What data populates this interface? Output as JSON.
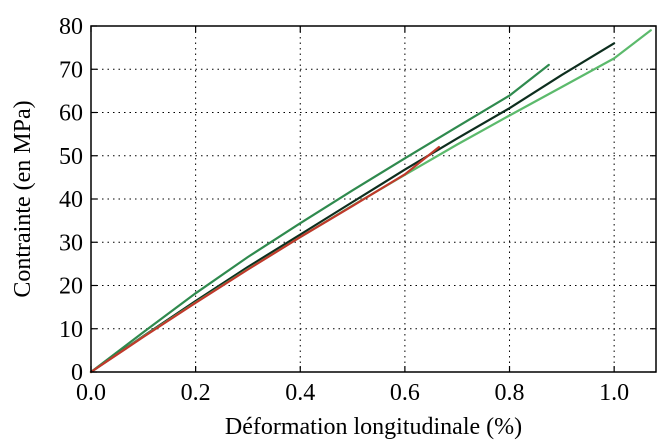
{
  "chart_data": {
    "type": "line",
    "title": "",
    "xlabel": "Déformation longitudinale (%)",
    "ylabel": "Contrainte (en MPa)",
    "xlim": [
      0.0,
      1.08
    ],
    "ylim": [
      0,
      80
    ],
    "x_ticks": [
      0.0,
      0.2,
      0.4,
      0.6,
      0.8,
      1.0
    ],
    "x_tick_labels": [
      "0.0",
      "0.2",
      "0.4",
      "0.6",
      "0.8",
      "1.0"
    ],
    "y_ticks": [
      0,
      10,
      20,
      30,
      40,
      50,
      60,
      70,
      80
    ],
    "y_tick_labels": [
      "0",
      "10",
      "20",
      "30",
      "40",
      "50",
      "60",
      "70",
      "80"
    ],
    "grid": true,
    "legend": false,
    "series": [
      {
        "color": "#2f8a4e",
        "x": [
          0.0,
          0.1,
          0.2,
          0.3,
          0.4,
          0.5,
          0.6,
          0.7,
          0.8,
          0.875
        ],
        "y": [
          0,
          9.2,
          18.2,
          26.6,
          34.4,
          42.0,
          49.4,
          56.7,
          63.9,
          71.0
        ]
      },
      {
        "color": "#0d2e1e",
        "x": [
          0.0,
          0.1,
          0.2,
          0.3,
          0.4,
          0.5,
          0.6,
          0.7,
          0.8,
          0.9,
          1.0
        ],
        "y": [
          0,
          8.3,
          16.4,
          24.3,
          31.8,
          39.3,
          46.8,
          54.0,
          61.0,
          68.7,
          76.0
        ]
      },
      {
        "color": "#5cba6c",
        "x": [
          0.0,
          0.1,
          0.2,
          0.3,
          0.4,
          0.5,
          0.6,
          0.7,
          0.8,
          0.9,
          1.0,
          1.07
        ],
        "y": [
          0,
          8.2,
          16.1,
          23.8,
          31.2,
          38.5,
          45.6,
          52.6,
          59.3,
          65.9,
          72.5,
          79.0
        ]
      },
      {
        "color": "#c0392b",
        "x": [
          0.0,
          0.1,
          0.2,
          0.3,
          0.4,
          0.5,
          0.6,
          0.665
        ],
        "y": [
          0,
          8.1,
          16.0,
          23.7,
          31.2,
          38.4,
          45.7,
          52.0
        ]
      }
    ]
  }
}
